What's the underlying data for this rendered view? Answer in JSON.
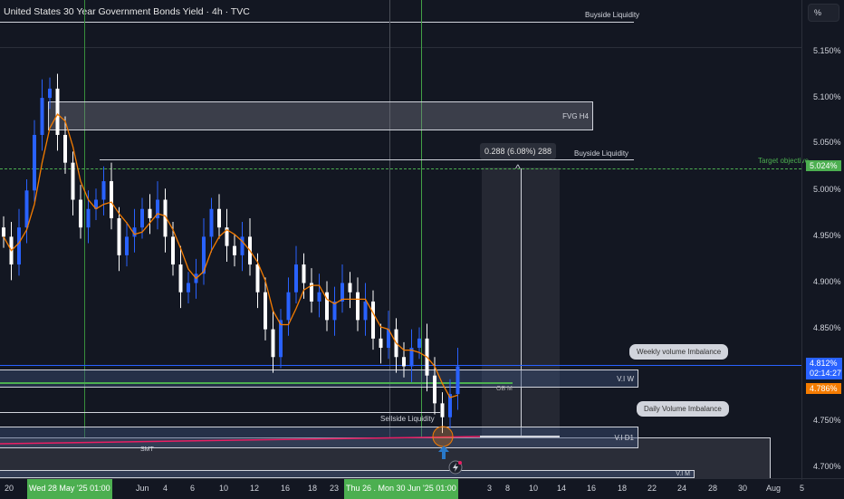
{
  "title": "United States 30 Year Government Bonds Yield · 4h · TVC",
  "unit_button": "%",
  "annotations": {
    "buyside_top": "Buyside Liquidity",
    "fvg": "FVG H4",
    "buyside_mid": "Buyside Liquidity",
    "measure": "0.288 (6.08%) 288",
    "target": "Target objective",
    "weekly_pill": "Weekly volume Imbalance",
    "viw": "V.I W",
    "obm": "OB M",
    "daily_pill": "Daily Volume Imbalance",
    "sellside": "Sellside Liquidity",
    "vid1": "V.I D1",
    "smt": "SMT",
    "vim": "V.I M"
  },
  "price_axis": {
    "ticks": [
      "5.150%",
      "5.100%",
      "5.050%",
      "5.000%",
      "4.950%",
      "4.900%",
      "4.850%",
      "4.750%",
      "4.700%"
    ],
    "target_tag": "5.024%",
    "last_price": "4.812%",
    "countdown": "02:14:27",
    "ma_tag": "4.786%"
  },
  "time_axis": {
    "labels": [
      "20",
      "Jun",
      "4",
      "6",
      "10",
      "12",
      "16",
      "18",
      "23",
      "3",
      "8",
      "10",
      "14",
      "16",
      "18",
      "22",
      "24",
      "28",
      "30",
      "Aug",
      "5"
    ],
    "highlight1": "Wed 28 May '25   01:00",
    "highlight2": "Thu 26 .  Mon 30 Jun '25   01:00"
  },
  "colors": {
    "up": "#2962ff",
    "down": "#ffffff",
    "ma": "#f57c00",
    "target": "#4caf50",
    "smt": "#e91e63"
  },
  "chart_data": {
    "type": "candlestick",
    "title": "United States 30 Year Government Bonds Yield · 4h · TVC",
    "ylabel": "%",
    "ylim": [
      4.69,
      5.17
    ],
    "closes": [
      4.95,
      4.92,
      4.96,
      5.0,
      5.06,
      5.1,
      5.11,
      5.06,
      5.03,
      4.99,
      4.96,
      4.98,
      4.99,
      5.01,
      4.97,
      4.93,
      4.95,
      4.96,
      4.98,
      4.97,
      4.99,
      4.95,
      4.92,
      4.89,
      4.9,
      4.91,
      4.95,
      4.98,
      4.96,
      4.94,
      4.93,
      4.95,
      4.92,
      4.89,
      4.85,
      4.82,
      4.86,
      4.89,
      4.92,
      4.9,
      4.88,
      4.89,
      4.86,
      4.88,
      4.9,
      4.89,
      4.86,
      4.88,
      4.84,
      4.83,
      4.85,
      4.82,
      4.81,
      4.83,
      4.84,
      4.8,
      4.77,
      4.755,
      4.78,
      4.81
    ],
    "levels": {
      "target": 5.024,
      "last": 4.812,
      "ma": 4.786,
      "measure_delta": 0.288,
      "measure_pct": 6.08
    }
  }
}
